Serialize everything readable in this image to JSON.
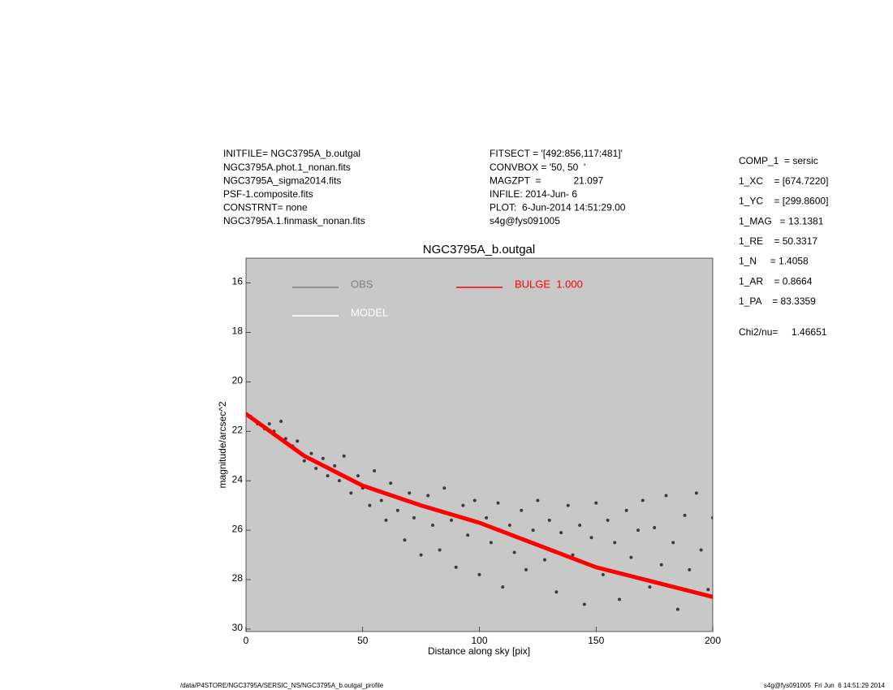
{
  "chart_data": {
    "type": "scatter",
    "title": "NGC3795A_b.outgal",
    "x_label": "Distance along sky [pix]",
    "y_label": "magnitude/arcsec^2",
    "xlim": [
      0,
      200
    ],
    "ylim": [
      30.1,
      15
    ],
    "xticks": [
      0,
      50,
      100,
      150,
      200
    ],
    "yticks": [
      16,
      18,
      20,
      22,
      24,
      26,
      28,
      30
    ],
    "background": "#c8c8c8",
    "info_left": [
      "INITFILE= NGC3795A_b.outgal",
      "NGC3795A.phot.1_nonan.fits",
      "NGC3795A_sigma2014.fits",
      "PSF-1.composite.fits",
      "CONSTRNT= none",
      "NGC3795A.1.finmask_nonan.fits"
    ],
    "info_mid": [
      "FITSECT = '[492:856,117:481]'",
      "CONVBOX = '50, 50  '",
      "MAGZPT  =            21.097",
      "INFILE: 2014-Jun- 6",
      "PLOT:  6-Jun-2014 14:51:29.00",
      "s4g@fys091005"
    ],
    "params": [
      "COMP_1  = sersic",
      "1_XC    = [674.7220]",
      "1_YC    = [299.8600]",
      "1_MAG   = 13.1381",
      "1_RE    = 50.3317",
      "1_N     = 1.4058",
      "1_AR    = 0.8664",
      "1_PA    = 83.3359"
    ],
    "chi2": "Chi2/nu=     1.46651",
    "footer_left": "/data/P4STORE/NGC3795A/SERSIC_NS/NGC3795A_b.outgal_profile",
    "footer_right": "s4g@fys091005  Fri Jun  6 14:51:29 2014",
    "series": [
      {
        "name": "OBS",
        "color": "#808080",
        "mark_color": "#3c3c3c",
        "style": "points",
        "x": [
          2,
          5,
          8,
          10,
          12,
          15,
          17,
          20,
          22,
          25,
          28,
          30,
          33,
          35,
          38,
          40,
          42,
          45,
          48,
          50,
          53,
          55,
          58,
          60,
          62,
          65,
          68,
          70,
          72,
          75,
          78,
          80,
          83,
          85,
          88,
          90,
          93,
          95,
          98,
          100,
          103,
          105,
          108,
          110,
          113,
          115,
          118,
          120,
          123,
          125,
          128,
          130,
          133,
          135,
          138,
          140,
          143,
          145,
          148,
          150,
          153,
          155,
          158,
          160,
          163,
          165,
          168,
          170,
          173,
          175,
          178,
          180,
          183,
          185,
          188,
          190,
          193,
          195,
          198,
          200
        ],
        "values": [
          21.4,
          21.7,
          21.9,
          21.7,
          22.0,
          21.6,
          22.3,
          22.6,
          22.4,
          23.2,
          22.9,
          23.5,
          23.1,
          23.8,
          23.4,
          24.0,
          23.0,
          24.5,
          23.8,
          24.3,
          25.0,
          23.6,
          24.8,
          25.6,
          24.1,
          25.2,
          26.4,
          24.5,
          25.5,
          27.0,
          24.6,
          25.8,
          26.8,
          24.3,
          25.6,
          27.5,
          25.0,
          26.2,
          24.8,
          27.8,
          25.5,
          26.5,
          24.9,
          28.3,
          25.8,
          26.9,
          25.2,
          27.6,
          26.0,
          24.8,
          27.2,
          25.6,
          28.5,
          26.1,
          25.0,
          27.0,
          25.8,
          29.0,
          26.3,
          24.9,
          27.8,
          25.6,
          26.5,
          28.8,
          25.2,
          27.1,
          26.0,
          24.8,
          28.3,
          25.9,
          27.4,
          24.6,
          26.5,
          29.2,
          25.4,
          27.6,
          24.5,
          26.8,
          28.4,
          25.5
        ]
      },
      {
        "name": "MODEL",
        "color": "#ffffff",
        "style": "line",
        "x": [],
        "values": []
      },
      {
        "name": "BULGE  1.000",
        "color": "#ff0000",
        "style": "line",
        "x": [
          0,
          25,
          50,
          75,
          100,
          125,
          150,
          175,
          200
        ],
        "values": [
          21.3,
          23.0,
          24.2,
          25.0,
          25.7,
          26.6,
          27.5,
          28.1,
          28.7
        ]
      }
    ]
  }
}
